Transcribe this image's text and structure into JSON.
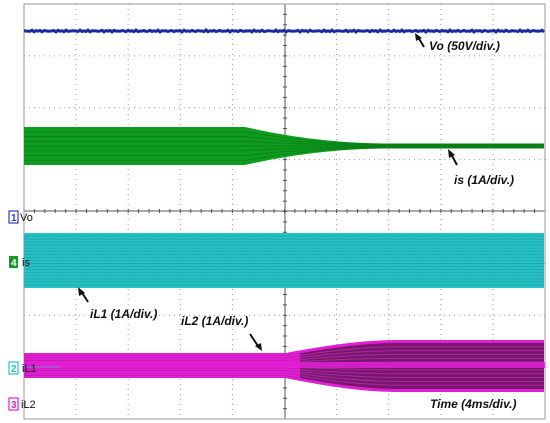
{
  "scope": {
    "colors": {
      "background": "#ffffff",
      "grid": "#9a9a9a",
      "axis": "#555555",
      "vo": "#1c2aa0",
      "is": "#0f9d1f",
      "il1": "#27c4c8",
      "il2": "#e01fd2",
      "il2_dark": "#7a1570",
      "il1_marker": "#7a7fd6"
    },
    "channels": [
      {
        "num": "1",
        "label": "Vo",
        "color": "#2f3bbf"
      },
      {
        "num": "4",
        "label": "is",
        "color": "#0f9d1f"
      },
      {
        "num": "2",
        "label": "iL1",
        "color": "#27c4c8"
      },
      {
        "num": "3",
        "label": "iL2",
        "color": "#e01fd2"
      }
    ],
    "annotations": {
      "vo": "Vo (50V/div.)",
      "is": "is (1A/div.)",
      "il1": "iL1 (1A/div.)",
      "il2": "iL2 (1A/div.)",
      "time": "Time (4ms/div.)"
    }
  }
}
